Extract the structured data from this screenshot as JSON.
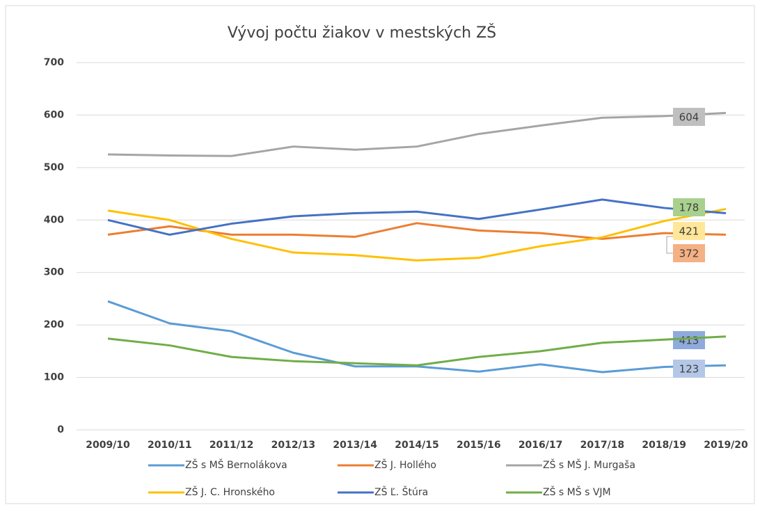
{
  "chart_data": {
    "type": "line",
    "title": "Vývoj počtu žiakov v mestských ZŠ",
    "categories": [
      "2009/10",
      "2010/11",
      "2011/12",
      "2012/13",
      "2013/14",
      "2014/15",
      "2015/16",
      "2016/17",
      "2017/18",
      "2018/19",
      "2019/20"
    ],
    "ylim": [
      0,
      700
    ],
    "yticks": [
      0,
      100,
      200,
      300,
      400,
      500,
      600,
      700
    ],
    "grid": true,
    "legend": "bottom",
    "series": [
      {
        "name": "ZŠ s MŠ Bernolákova",
        "color": "#5b9bd5",
        "values": [
          245,
          203,
          188,
          147,
          121,
          121,
          111,
          125,
          110,
          120,
          123
        ]
      },
      {
        "name": "ZŠ J. Hollého",
        "color": "#ed7d31",
        "values": [
          372,
          388,
          372,
          372,
          368,
          394,
          380,
          375,
          364,
          375,
          372
        ]
      },
      {
        "name": "ZŠ s MŠ J. Murgaša",
        "color": "#a5a5a5",
        "values": [
          525,
          523,
          522,
          540,
          534,
          540,
          564,
          580,
          595,
          598,
          604
        ]
      },
      {
        "name": "ZŠ J. C. Hronského",
        "color": "#ffc000",
        "values": [
          418,
          400,
          364,
          338,
          333,
          323,
          328,
          350,
          367,
          398,
          421
        ]
      },
      {
        "name": "ZŠ Ľ. Štúra",
        "color": "#4472c4",
        "values": [
          400,
          372,
          393,
          407,
          413,
          416,
          402,
          420,
          439,
          423,
          413
        ]
      },
      {
        "name": "ZŠ s MŠ s VJM",
        "color": "#70ad47",
        "values": [
          174,
          161,
          139,
          131,
          127,
          123,
          139,
          150,
          166,
          172,
          178
        ]
      }
    ]
  }
}
